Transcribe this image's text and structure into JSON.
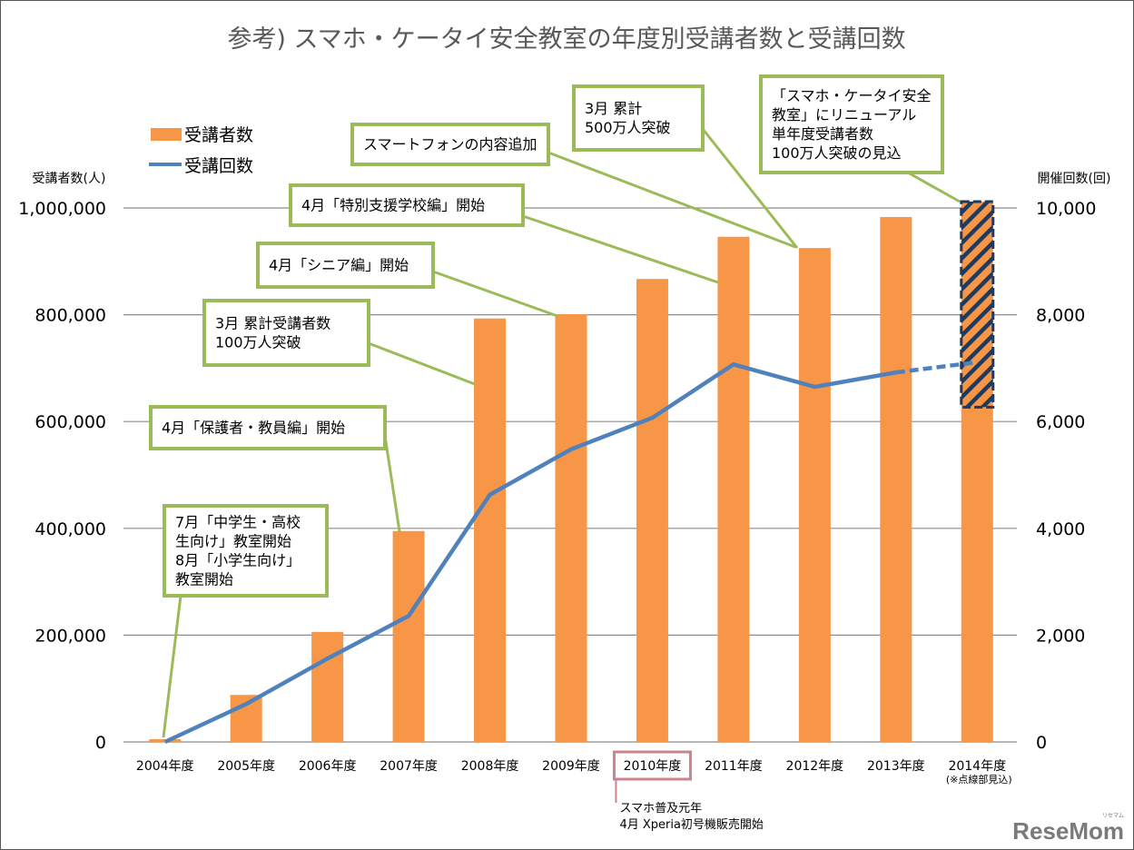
{
  "chart_data": {
    "type": "bar+line",
    "title": "参考) スマホ・ケータイ安全教室の年度別受講者数と受講回数",
    "categories": [
      "2004年度",
      "2005年度",
      "2006年度",
      "2007年度",
      "2008年度",
      "2009年度",
      "2010年度",
      "2011年度",
      "2012年度",
      "2013年度",
      "2014年度"
    ],
    "category_note": "(※点線部見込)",
    "category_note_index": 10,
    "y_left": {
      "label": "受講者数(人)",
      "range": [
        0,
        1000000
      ],
      "ticks": [
        0,
        200000,
        400000,
        600000,
        800000,
        1000000
      ],
      "tick_labels": [
        "0",
        "200,000",
        "400,000",
        "600,000",
        "800,000",
        "1,000,000"
      ]
    },
    "y_right": {
      "label": "開催回数(回)",
      "range": [
        0,
        10000
      ],
      "ticks": [
        0,
        2000,
        4000,
        6000,
        8000,
        10000
      ],
      "tick_labels": [
        "0",
        "2,000",
        "4,000",
        "6,000",
        "8,000",
        "10,000"
      ]
    },
    "grid": true,
    "legend_position": "top-left",
    "series": [
      {
        "name": "受講者数",
        "type": "bar",
        "axis": "left",
        "color": "#F79646",
        "values": [
          5000,
          88000,
          206000,
          395000,
          793000,
          801000,
          867000,
          946000,
          925000,
          983000,
          627000
        ],
        "projected": {
          "index": 10,
          "value": 1012000,
          "style": "hatched-dashed",
          "outline_color": "#1F3A5F"
        }
      },
      {
        "name": "受講回数",
        "type": "line",
        "axis": "right",
        "color": "#4F81BD",
        "values": [
          0,
          710,
          1560,
          2360,
          4630,
          5480,
          6070,
          7070,
          6650,
          6920,
          null
        ],
        "projected": {
          "from_index": 9,
          "index": 10,
          "value": 7110,
          "style": "dashed"
        }
      }
    ],
    "annotations": [
      {
        "lines": [
          "7月「中学生・高校",
          "生向け」教室開始",
          "8月「小学生向け」",
          "教室開始"
        ],
        "target_index": 0
      },
      {
        "lines": [
          "4月「保護者・教員編」開始"
        ],
        "target_index": 3
      },
      {
        "lines": [
          "3月 累計受講者数",
          "100万人突破"
        ],
        "target_index": 4
      },
      {
        "lines": [
          "4月「シニア編」開始"
        ],
        "target_index": 5
      },
      {
        "lines": [
          "4月「特別支援学校編」開始"
        ],
        "target_index": 7
      },
      {
        "lines": [
          "スマートフォンの内容追加"
        ],
        "target_index": 8
      },
      {
        "lines": [
          "3月 累計",
          "500万人突破"
        ],
        "target_index": 8
      },
      {
        "lines": [
          "「スマホ・ケータイ安全",
          "教室」にリニューアル",
          "単年度受講者数",
          "100万人突破の見込"
        ],
        "target_index": 10
      }
    ],
    "highlight": {
      "category_index": 6,
      "color": "#C9848E",
      "lines": [
        "スマホ普及元年",
        "4月 Xperia初号機販売開始"
      ]
    },
    "annotation_border_color": "#9BBB59"
  },
  "branding": {
    "logo": "ReseMom",
    "logo_small": "リセマム"
  }
}
